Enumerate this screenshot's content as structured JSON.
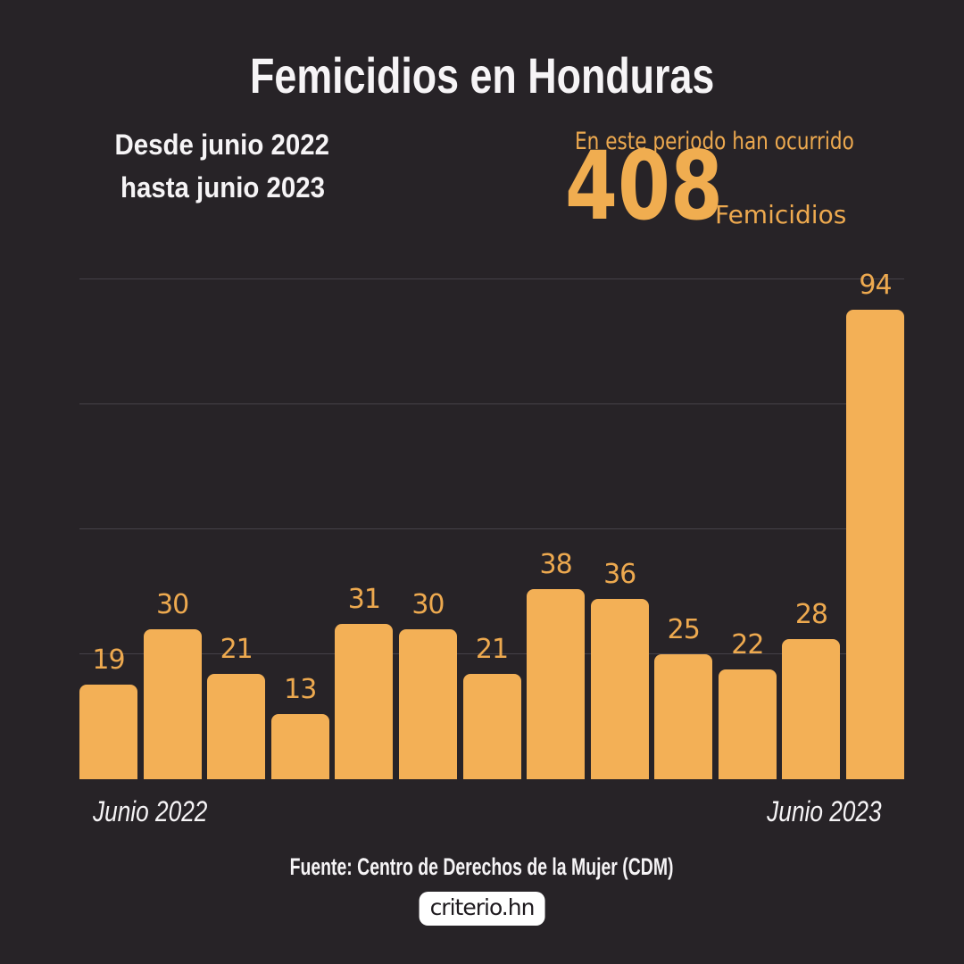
{
  "colors": {
    "background": "#272327",
    "bar": "#F3B056",
    "accent_text": "#EDA94F",
    "big_number": "#F0AD50",
    "title_text": "#F6F4F6",
    "gridline": "#454148",
    "logo_bg": "#FFFFFF",
    "logo_text": "#1E1A1E"
  },
  "header": {
    "title": "Femicidios en Honduras",
    "period_line1": "Desde junio 2022",
    "period_line2": "hasta junio 2023",
    "stat_intro": "En este periodo han ocurrido",
    "stat_value": "408",
    "stat_unit": "Femicidios"
  },
  "chart_data": {
    "type": "bar",
    "title": "Femicidios en Honduras",
    "values": [
      19,
      30,
      21,
      13,
      31,
      30,
      21,
      38,
      36,
      25,
      22,
      28,
      94
    ],
    "bar_labels_shown": true,
    "x_start_label": "Junio 2022",
    "x_end_label": "Junio 2023",
    "ylim": [
      0,
      100
    ],
    "gridline_values": [
      25,
      50,
      75,
      100
    ],
    "grid": "horizontal-only",
    "legend": "none"
  },
  "footer": {
    "source": "Fuente: Centro de Derechos de la Mujer (CDM)",
    "logo": "criterio.hn"
  }
}
